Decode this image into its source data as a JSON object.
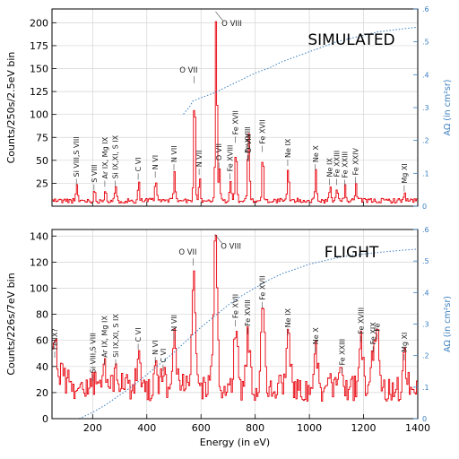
{
  "chart_data": [
    {
      "type": "line",
      "panel_label": "SIMULATED",
      "ylabel": "Counts/250s/2.5eV bin",
      "y2label": "AΩ (in cm²sr)",
      "xlim": [
        50,
        1400
      ],
      "ylim": [
        0,
        215
      ],
      "y2lim": [
        0,
        0.6
      ],
      "yticks": [
        25,
        50,
        75,
        100,
        125,
        150,
        175,
        200
      ],
      "y2ticks": [
        0,
        0.1,
        0.2,
        0.3,
        0.4,
        0.5,
        0.6
      ],
      "y2ticklabels": [
        "0",
        ".1",
        ".2",
        ".3",
        ".4",
        ".5",
        ".6"
      ],
      "xticks": [
        200,
        400,
        600,
        800,
        1000,
        1200,
        1400
      ],
      "xticklabels": [
        "",
        "",
        "",
        "",
        "",
        "",
        ""
      ],
      "grid": true,
      "colors": {
        "spectrum": "#e8000b",
        "effective_area": "#3a7fc0",
        "right_axis": "#3a7fc0"
      },
      "baseline": 6,
      "lines": [
        {
          "label": "Si VIII,S VIII",
          "x": 140,
          "y": 22
        },
        {
          "label": "S VIII",
          "x": 205,
          "y": 16
        },
        {
          "label": "Ar IX, Mg IX",
          "x": 245,
          "y": 20
        },
        {
          "label": "Si IX,XI, S IX",
          "x": 283,
          "y": 20
        },
        {
          "label": "C VI",
          "x": 368,
          "y": 28
        },
        {
          "label": "N VI",
          "x": 431,
          "y": 30
        },
        {
          "label": "N VII",
          "x": 500,
          "y": 38
        },
        {
          "label": "O VII",
          "x": 574,
          "y": 132
        },
        {
          "label": "N VII",
          "x": 593,
          "y": 33
        },
        {
          "label": "O VIII",
          "x": 654,
          "y": 210
        },
        {
          "label": "O VII",
          "x": 666,
          "y": 40
        },
        {
          "label": "Fe XVIII",
          "x": 707,
          "y": 28
        },
        {
          "label": "Fe XVII",
          "x": 727,
          "y": 68
        },
        {
          "label": "Fe XVIII",
          "x": 772,
          "y": 48
        },
        {
          "label": "O VIII",
          "x": 775,
          "y": 48
        },
        {
          "label": "Fe XVII",
          "x": 826,
          "y": 58
        },
        {
          "label": "Ne IX",
          "x": 920,
          "y": 43
        },
        {
          "label": "Ne X",
          "x": 1022,
          "y": 38
        },
        {
          "label": "Ne IX",
          "x": 1074,
          "y": 22
        },
        {
          "label": "Fe XXIII",
          "x": 1100,
          "y": 22
        },
        {
          "label": "Fe XXIII",
          "x": 1130,
          "y": 21
        },
        {
          "label": "Fe XXIV",
          "x": 1170,
          "y": 24
        },
        {
          "label": "Mg XI",
          "x": 1350,
          "y": 15
        }
      ],
      "effective_area_curve": {
        "x": [
          535,
          560,
          570,
          600,
          650,
          700,
          750,
          800,
          850,
          900,
          950,
          1000,
          1050,
          1100,
          1150,
          1200,
          1250,
          1300,
          1350,
          1400
        ],
        "y": [
          0.28,
          0.305,
          0.32,
          0.33,
          0.345,
          0.365,
          0.385,
          0.405,
          0.42,
          0.44,
          0.455,
          0.47,
          0.485,
          0.5,
          0.51,
          0.52,
          0.53,
          0.535,
          0.54,
          0.545
        ]
      }
    },
    {
      "type": "line",
      "panel_label": "FLIGHT",
      "ylabel": "Counts/226s/7eV bin",
      "y2label": "AΩ (in cm²sr)",
      "xlabel": "Energy (in eV)",
      "xlim": [
        50,
        1400
      ],
      "ylim": [
        0,
        145
      ],
      "y2lim": [
        0,
        0.6
      ],
      "yticks": [
        0,
        20,
        40,
        60,
        80,
        100,
        120,
        140
      ],
      "y2ticks": [
        0,
        0.1,
        0.2,
        0.3,
        0.4,
        0.5,
        0.6
      ],
      "y2ticklabels": [
        "0",
        ".1",
        ".2",
        ".3",
        ".4",
        ".5",
        ".6"
      ],
      "xticks": [
        200,
        400,
        600,
        800,
        1000,
        1200,
        1400
      ],
      "xticklabels": [
        "200",
        "400",
        "600",
        "800",
        "1000",
        "1200",
        "1400"
      ],
      "grid": true,
      "colors": {
        "spectrum": "#e8000b",
        "effective_area": "#3a7fc0",
        "right_axis": "#3a7fc0"
      },
      "baseline": 24,
      "lines": [
        {
          "label": "Fe IX?",
          "x": 60,
          "y": 46
        },
        {
          "label": "Si VIII,S VIII",
          "x": 200,
          "y": 28
        },
        {
          "label": "Ar IX, Mg IX",
          "x": 243,
          "y": 40
        },
        {
          "label": "Si IX,XI, S IX",
          "x": 285,
          "y": 40
        },
        {
          "label": "C VI",
          "x": 368,
          "y": 52
        },
        {
          "label": "N VI",
          "x": 431,
          "y": 42
        },
        {
          "label": "C VI",
          "x": 460,
          "y": 36
        },
        {
          "label": "N VII",
          "x": 500,
          "y": 60
        },
        {
          "label": "O VII",
          "x": 571,
          "y": 116
        },
        {
          "label": "O VIII",
          "x": 651,
          "y": 140
        },
        {
          "label": "Fe XVII",
          "x": 727,
          "y": 70
        },
        {
          "label": "Fe XVIII",
          "x": 772,
          "y": 64
        },
        {
          "label": "Fe XVII",
          "x": 826,
          "y": 84
        },
        {
          "label": "Ne IX",
          "x": 920,
          "y": 63
        },
        {
          "label": "Ne X",
          "x": 1022,
          "y": 50
        },
        {
          "label": "Fe XXIII",
          "x": 1120,
          "y": 34
        },
        {
          "label": "Fe XVIII",
          "x": 1190,
          "y": 58
        },
        {
          "label": "Fe XIX",
          "x": 1235,
          "y": 50
        },
        {
          "label": "Fe",
          "x": 1250,
          "y": 60
        },
        {
          "label": "Mg XI",
          "x": 1350,
          "y": 44
        }
      ],
      "effective_area_curve": {
        "x": [
          150,
          200,
          250,
          300,
          350,
          400,
          450,
          500,
          550,
          600,
          650,
          700,
          750,
          800,
          850,
          900,
          950,
          1000,
          1050,
          1100,
          1150,
          1200,
          1250,
          1300,
          1350,
          1400
        ],
        "y": [
          0.0,
          0.02,
          0.045,
          0.075,
          0.105,
          0.14,
          0.175,
          0.21,
          0.25,
          0.29,
          0.325,
          0.36,
          0.39,
          0.415,
          0.44,
          0.46,
          0.475,
          0.49,
          0.5,
          0.51,
          0.517,
          0.522,
          0.527,
          0.531,
          0.535,
          0.538
        ]
      }
    }
  ]
}
